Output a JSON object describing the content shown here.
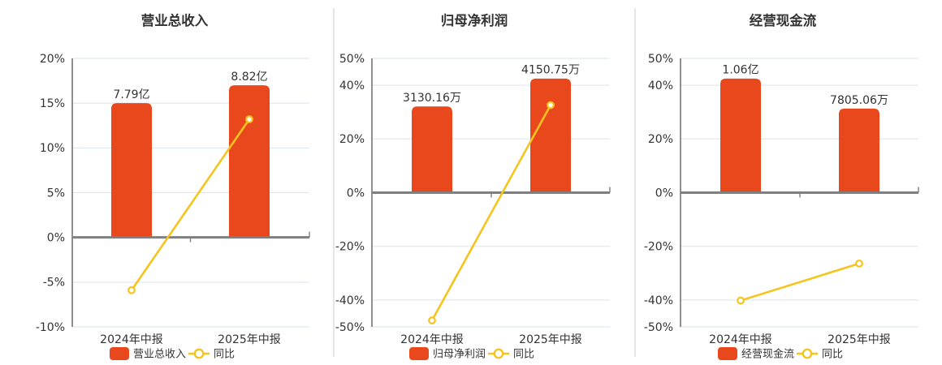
{
  "page": {
    "background": "#ffffff"
  },
  "colors": {
    "bar": "#E8481C",
    "line": "#F5C41D",
    "grid": "#DAE3EE",
    "zero_axis": "#7F7F7F",
    "y_axis": "#606060",
    "text": "#333333",
    "divider": "#CCCCCC",
    "marker_fill": "#FFFFFF"
  },
  "chart_data": [
    {
      "type": "bar",
      "title": "营业总收入",
      "categories": [
        "2024年中报",
        "2025年中报"
      ],
      "series": [
        {
          "kind": "bar",
          "name": "营业总收入",
          "value_labels": [
            "7.79亿",
            "8.82亿"
          ],
          "visual_height_pct": [
            15,
            17
          ]
        },
        {
          "kind": "line",
          "name": "同比",
          "values_pct": [
            -5.9,
            13.2
          ]
        }
      ],
      "y_ticks": [
        "20%",
        "15%",
        "10%",
        "5%",
        "0%",
        "-5%",
        "-10%"
      ],
      "y_tick_values": [
        20,
        15,
        10,
        5,
        0,
        -5,
        -10
      ],
      "ylim": [
        -10,
        20
      ],
      "grid": true,
      "legend_position": "bottom"
    },
    {
      "type": "bar",
      "title": "归母净利润",
      "categories": [
        "2024年中报",
        "2025年中报"
      ],
      "series": [
        {
          "kind": "bar",
          "name": "归母净利润",
          "value_labels": [
            "3130.16万",
            "4150.75万"
          ],
          "visual_height_pct": [
            32.1,
            42.5
          ]
        },
        {
          "kind": "line",
          "name": "同比",
          "values_pct": [
            -47.6,
            32.6
          ]
        }
      ],
      "y_ticks": [
        "50%",
        "40%",
        "20%",
        "0%",
        "-20%",
        "-40%",
        "-50%"
      ],
      "y_tick_values": [
        50,
        40,
        20,
        0,
        -20,
        -40,
        -50
      ],
      "ylim": [
        -50,
        50
      ],
      "grid": true,
      "legend_position": "bottom"
    },
    {
      "type": "bar",
      "title": "经营现金流",
      "categories": [
        "2024年中报",
        "2025年中报"
      ],
      "series": [
        {
          "kind": "bar",
          "name": "经营现金流",
          "value_labels": [
            "1.06亿",
            "7805.06万"
          ],
          "visual_height_pct": [
            42.5,
            31.3
          ]
        },
        {
          "kind": "line",
          "name": "同比",
          "values_pct": [
            -40.2,
            -26.4
          ]
        }
      ],
      "y_ticks": [
        "50%",
        "40%",
        "20%",
        "0%",
        "-20%",
        "-40%",
        "-50%"
      ],
      "y_tick_values": [
        50,
        40,
        20,
        0,
        -20,
        -40,
        -50
      ],
      "ylim": [
        -50,
        50
      ],
      "grid": true,
      "legend_position": "bottom"
    }
  ]
}
